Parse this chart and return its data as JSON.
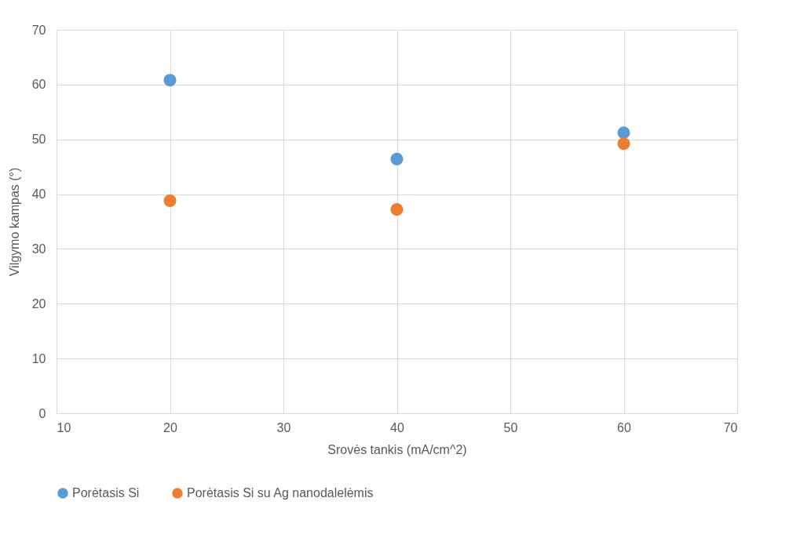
{
  "chart_data": {
    "type": "scatter",
    "xlabel": "Srovės tankis (mA/cm^2)",
    "ylabel": "Vilgymo kampas (°)",
    "x": [
      20,
      40,
      60
    ],
    "series": [
      {
        "name": "Porėtasis Si",
        "color": "#5b9bd5",
        "values": [
          60.8,
          46.4,
          51.2
        ]
      },
      {
        "name": "Porėtasis Si su Ag nanodalelėmis",
        "color": "#ed7d31",
        "values": [
          38.8,
          37.2,
          49.2
        ]
      }
    ],
    "xlim": [
      10,
      70
    ],
    "xticks": [
      10,
      20,
      30,
      40,
      50,
      60,
      70
    ],
    "ylim": [
      0,
      70
    ],
    "yticks": [
      0,
      10,
      20,
      30,
      40,
      50,
      60,
      70
    ],
    "grid": true,
    "legend": "bottom",
    "marker": "circle"
  }
}
